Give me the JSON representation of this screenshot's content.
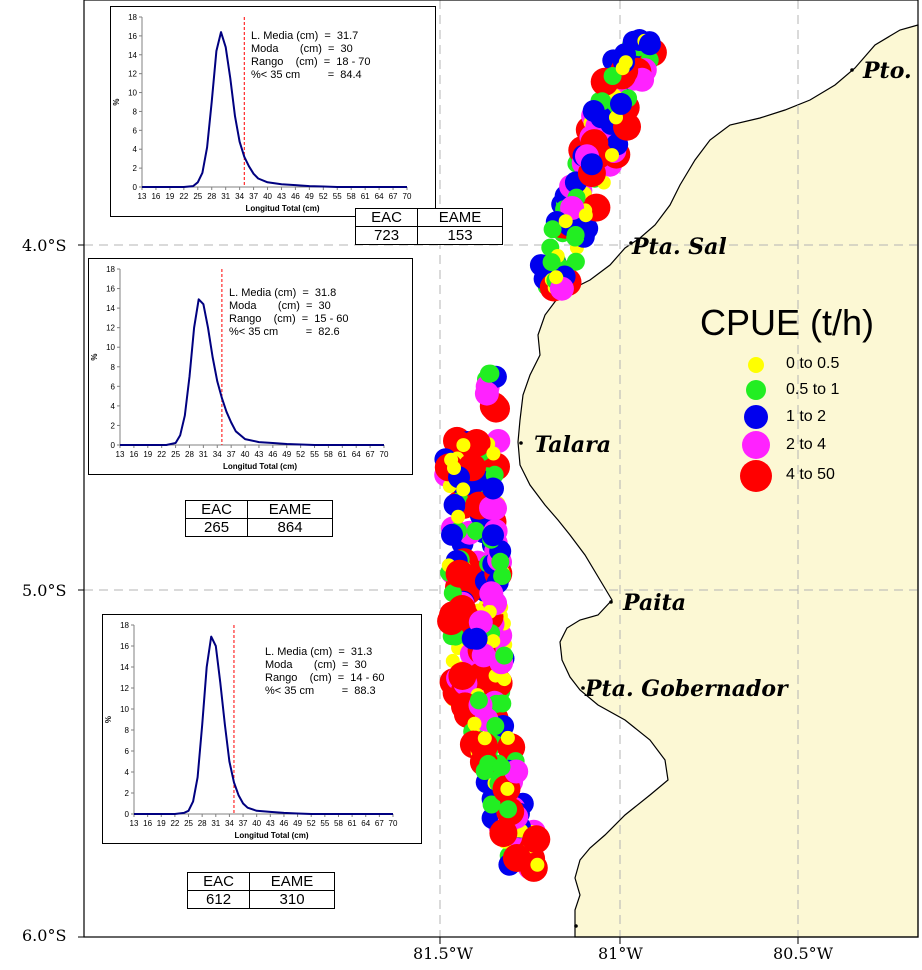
{
  "map": {
    "land_color": "#FCF8D4",
    "grid_color": "#B4B4B4",
    "axes": {
      "lat_labels": [
        "4.0°S",
        "5.0°S",
        "6.0°S"
      ],
      "lon_labels": [
        "81.5°W",
        "81°W",
        "80.5°W"
      ]
    },
    "places": [
      "Pto.",
      "Pta. Sal",
      "Talara",
      "Paita",
      "Pta. Gobernador"
    ],
    "legend": {
      "title": "CPUE (t/h)",
      "items": [
        {
          "label": "0  to  0.5",
          "color": "#FFFF00"
        },
        {
          "label": "0.5  to  1",
          "color": "#22EE22"
        },
        {
          "label": "1  to  2",
          "color": "#0000EE"
        },
        {
          "label": "2  to  4",
          "color": "#FF22FF"
        },
        {
          "label": "4  to  50",
          "color": "#FF0000"
        }
      ]
    }
  },
  "histograms": [
    {
      "stats": [
        "L. Media (cm)  =  31.7",
        "Moda       (cm)  =  30",
        "Rango    (cm)  =  18 - 70",
        "%< 35 cm         =  84.4"
      ],
      "table": {
        "headers": [
          "EAC",
          "EAME"
        ],
        "values": [
          "723",
          "153"
        ]
      }
    },
    {
      "stats": [
        "L. Media (cm)  =  31.8",
        "Moda       (cm)  =  30",
        "Rango    (cm)  =  15 - 60",
        "%< 35 cm         =  82.6"
      ],
      "table": {
        "headers": [
          "EAC",
          "EAME"
        ],
        "values": [
          "265",
          "864"
        ]
      }
    },
    {
      "stats": [
        "L. Media (cm)  =  31.3",
        "Moda       (cm)  =  30",
        "Rango    (cm)  =  14 - 60",
        "%< 35 cm         =  88.3"
      ],
      "table": {
        "headers": [
          "EAC",
          "EAME"
        ],
        "values": [
          "612",
          "310"
        ]
      }
    }
  ],
  "chart_data": [
    {
      "type": "line",
      "xlabel": "Longitud Total (cm)",
      "ylabel": "%",
      "xticks": [
        13,
        16,
        19,
        22,
        25,
        28,
        31,
        34,
        37,
        40,
        43,
        46,
        49,
        52,
        55,
        58,
        61,
        64,
        67,
        70
      ],
      "yticks": [
        0,
        2,
        4,
        6,
        8,
        10,
        12,
        14,
        16,
        18
      ],
      "ylim": [
        0,
        18
      ],
      "ref_line_x": 35,
      "ref_line_color": "#FF0000",
      "line_color": "#000080",
      "series": [
        {
          "x": [
            13,
            22,
            24,
            25,
            26,
            27,
            28,
            29,
            30,
            31,
            32,
            33,
            34,
            35,
            36,
            37,
            38,
            40,
            43,
            46,
            49,
            52,
            55,
            58,
            61,
            64,
            67,
            70
          ],
          "values": [
            0,
            0,
            0.1,
            0.5,
            1.5,
            4.2,
            9,
            14.4,
            16.4,
            14.8,
            11.5,
            7.5,
            4.8,
            3.2,
            2.2,
            1.4,
            0.9,
            0.5,
            0.3,
            0.2,
            0.1,
            0.05,
            0,
            0,
            0,
            0,
            0,
            0
          ]
        }
      ]
    },
    {
      "type": "line",
      "xlabel": "Longitud Total (cm)",
      "ylabel": "%",
      "xticks": [
        13,
        16,
        19,
        22,
        25,
        28,
        31,
        34,
        37,
        40,
        43,
        46,
        49,
        52,
        55,
        58,
        61,
        64,
        67,
        70
      ],
      "yticks": [
        0,
        2,
        4,
        6,
        8,
        10,
        12,
        14,
        16,
        18
      ],
      "ylim": [
        0,
        18
      ],
      "ref_line_x": 35,
      "ref_line_color": "#FF0000",
      "line_color": "#000080",
      "series": [
        {
          "x": [
            13,
            23,
            25,
            26,
            27,
            28,
            29,
            30,
            31,
            32,
            33,
            34,
            35,
            36,
            37,
            38,
            40,
            43,
            46,
            49,
            52,
            55,
            58,
            61,
            64,
            67,
            70
          ],
          "values": [
            0,
            0,
            0.2,
            1.0,
            3.0,
            7.0,
            12.0,
            14.9,
            14.4,
            12.0,
            9.0,
            6.5,
            4.8,
            3.4,
            2.3,
            1.4,
            0.6,
            0.3,
            0.2,
            0.1,
            0.05,
            0,
            0,
            0,
            0,
            0,
            0
          ]
        }
      ]
    },
    {
      "type": "line",
      "xlabel": "Longitud Total (cm)",
      "ylabel": "%",
      "xticks": [
        13,
        16,
        19,
        22,
        25,
        28,
        31,
        34,
        37,
        40,
        43,
        46,
        49,
        52,
        55,
        58,
        61,
        64,
        67,
        70
      ],
      "yticks": [
        0,
        2,
        4,
        6,
        8,
        10,
        12,
        14,
        16,
        18
      ],
      "ylim": [
        0,
        18
      ],
      "ref_line_x": 35,
      "ref_line_color": "#FF0000",
      "line_color": "#000080",
      "series": [
        {
          "x": [
            13,
            22,
            24,
            25,
            26,
            27,
            28,
            29,
            30,
            31,
            32,
            33,
            34,
            35,
            36,
            37,
            38,
            40,
            43,
            46,
            49,
            52,
            55,
            58,
            61,
            64,
            67,
            70
          ],
          "values": [
            0,
            0,
            0.1,
            0.3,
            1.2,
            3.5,
            8.5,
            14.0,
            16.9,
            16.0,
            12.5,
            8.5,
            5.0,
            3.0,
            1.8,
            1.0,
            0.6,
            0.3,
            0.2,
            0.1,
            0.05,
            0,
            0,
            0,
            0,
            0,
            0,
            0
          ]
        }
      ]
    }
  ]
}
